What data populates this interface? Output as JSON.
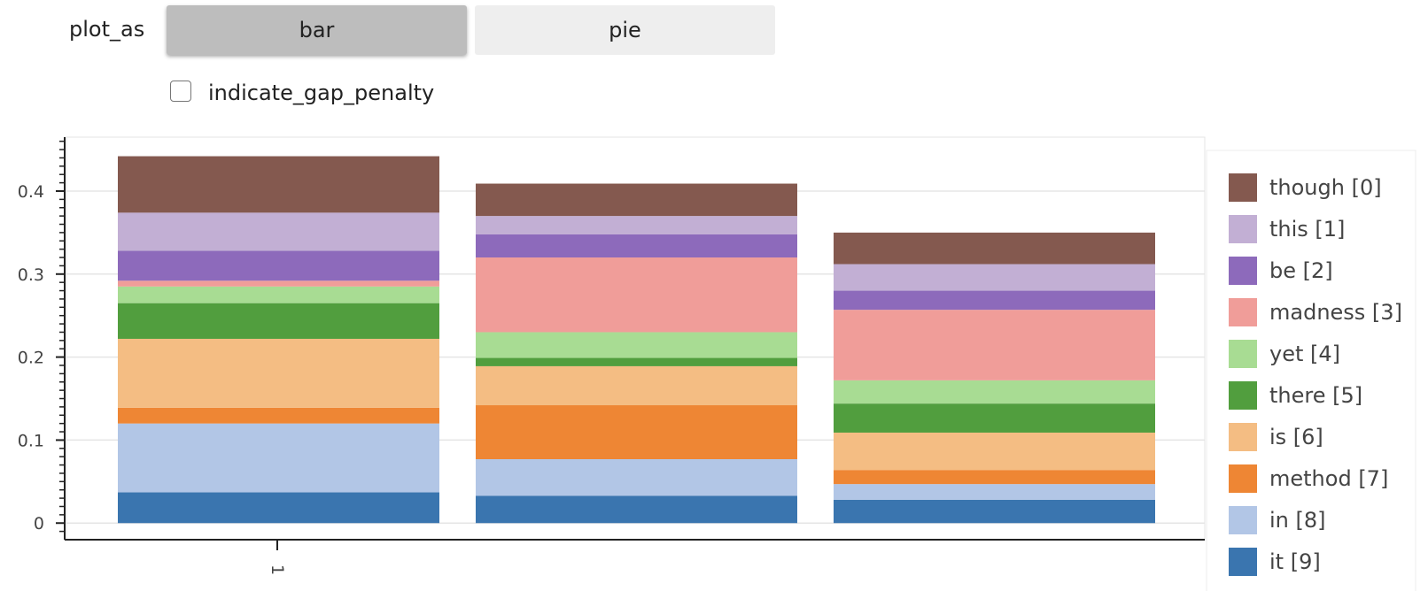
{
  "widget": {
    "plot_as_label": "plot_as",
    "options": [
      "bar",
      "pie"
    ],
    "selected": "bar",
    "checkbox_label": "indicate_gap_penalty",
    "checkbox_checked": false
  },
  "chart_data": {
    "type": "bar",
    "stacked": true,
    "title": "",
    "xlabel": "",
    "ylabel": "",
    "x_tick_labels": [
      "1"
    ],
    "ylim": [
      -0.02,
      0.465
    ],
    "y_ticks": [
      0,
      0.1,
      0.2,
      0.3,
      0.4
    ],
    "y_tick_labels": [
      "0",
      "0.1",
      "0.2",
      "0.3",
      "0.4"
    ],
    "grid": "horizontal",
    "legend_position": "right",
    "bar_count": 3,
    "series": [
      {
        "name": "it [9]",
        "color": "#3a75af",
        "values": [
          0.037,
          0.033,
          0.028
        ]
      },
      {
        "name": "in [8]",
        "color": "#b2c6e6",
        "values": [
          0.083,
          0.044,
          0.019
        ]
      },
      {
        "name": "method [7]",
        "color": "#ee8634",
        "values": [
          0.019,
          0.065,
          0.017
        ]
      },
      {
        "name": "is [6]",
        "color": "#f4bd83",
        "values": [
          0.083,
          0.047,
          0.045
        ]
      },
      {
        "name": "there [5]",
        "color": "#519e3e",
        "values": [
          0.043,
          0.01,
          0.035
        ]
      },
      {
        "name": "yet [4]",
        "color": "#a8dc93",
        "values": [
          0.02,
          0.031,
          0.028
        ]
      },
      {
        "name": "madness [3]",
        "color": "#f09d99",
        "values": [
          0.007,
          0.09,
          0.085
        ]
      },
      {
        "name": "be [2]",
        "color": "#8d6abb",
        "values": [
          0.036,
          0.028,
          0.023
        ]
      },
      {
        "name": "this [1]",
        "color": "#c2afd4",
        "values": [
          0.046,
          0.022,
          0.032
        ]
      },
      {
        "name": "though [0]",
        "color": "#84594f",
        "values": [
          0.068,
          0.039,
          0.038
        ]
      }
    ],
    "legend_order": [
      "though [0]",
      "this [1]",
      "be [2]",
      "madness [3]",
      "yet [4]",
      "there [5]",
      "is [6]",
      "method [7]",
      "in [8]",
      "it [9]"
    ]
  }
}
